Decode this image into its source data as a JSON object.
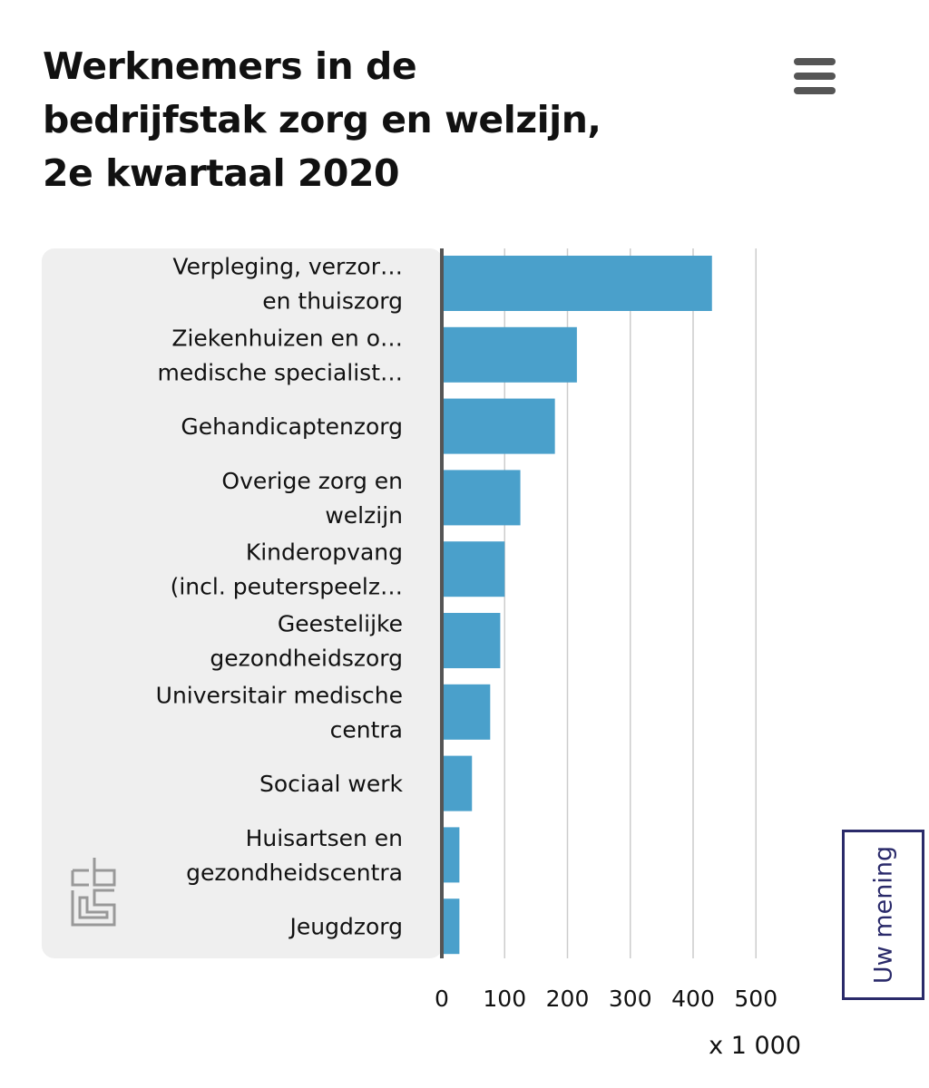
{
  "header": {
    "title_lines": [
      "Werknemers in de",
      "bedrijfstak zorg en welzijn,",
      "2e kwartaal 2020"
    ]
  },
  "feedback": {
    "label": "Uw mening"
  },
  "icons": {
    "menu": "hamburger-menu-icon",
    "logo": "cbs-logo-icon"
  },
  "colors": {
    "bar": "#4aa0cb",
    "label_panel": "#efefef",
    "axis": "#555555",
    "grid": "#cccccc"
  },
  "chart_data": {
    "type": "bar",
    "orientation": "horizontal",
    "categories": [
      [
        "Verpleging, verzor…",
        "en thuiszorg"
      ],
      [
        "Ziekenhuizen en o…",
        "medische specialist…"
      ],
      [
        "Gehandicaptenzorg"
      ],
      [
        "Overige zorg en",
        "welzijn"
      ],
      [
        "Kinderopvang",
        "(incl. peuterspeelz…"
      ],
      [
        "Geestelijke",
        "gezondheidszorg"
      ],
      [
        "Universitair medische",
        "centra"
      ],
      [
        "Sociaal werk"
      ],
      [
        "Huisartsen en",
        "gezondheidscentra"
      ],
      [
        "Jeugdzorg"
      ]
    ],
    "values": [
      430,
      215,
      180,
      125,
      100,
      93,
      77,
      48,
      28,
      28
    ],
    "xlim": [
      0,
      500
    ],
    "xticks": [
      0,
      100,
      200,
      300,
      400,
      500
    ],
    "xunit": "x 1 000",
    "grid": true
  }
}
